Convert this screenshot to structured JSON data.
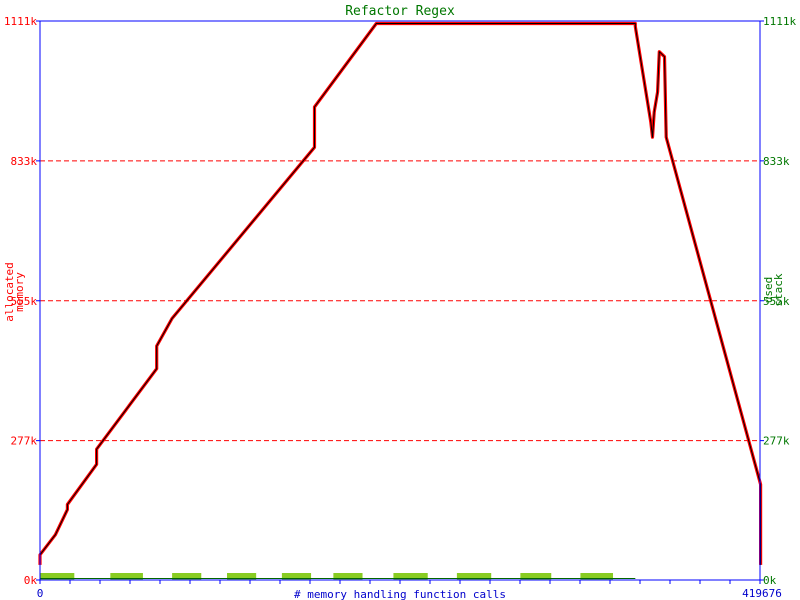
{
  "colors": {
    "axis": "#0000ff",
    "allocated": "#ff0000",
    "allocated_label": "#ff0000",
    "stack_label": "#007700",
    "stack_bar": "#88cc22",
    "grid": "#ff0000",
    "curve_black": "#000000",
    "xlabel": "#0000cc"
  },
  "chart_data": {
    "type": "line",
    "title": "Refactor Regex",
    "xlabel": "# memory handling function calls",
    "ylabel_left": [
      "allocated",
      "memory"
    ],
    "ylabel_right": [
      "used",
      "stack"
    ],
    "xlim": [
      0,
      419676
    ],
    "ylim": [
      0,
      1111
    ],
    "y_units": "k",
    "x_ticks": [
      "0",
      "419676"
    ],
    "y_ticks_left": [
      "0k",
      "277k",
      "555k",
      "833k",
      "1111k"
    ],
    "y_ticks_right": [
      "0k",
      "277k",
      "555k",
      "833k",
      "1111k"
    ],
    "y_tick_values": [
      0,
      277,
      555,
      833,
      1111
    ],
    "grid_values": [
      277,
      555,
      833
    ],
    "grid": "dashed horizontal",
    "series": [
      {
        "kind": "allocated",
        "points": [
          [
            0,
            30
          ],
          [
            0,
            50
          ],
          [
            9000,
            90
          ],
          [
            16000,
            140
          ],
          [
            16000,
            150
          ],
          [
            33000,
            230
          ],
          [
            33000,
            260
          ],
          [
            68000,
            420
          ],
          [
            68000,
            465
          ],
          [
            77000,
            520
          ],
          [
            160000,
            860
          ],
          [
            160000,
            940
          ],
          [
            196000,
            1106
          ],
          [
            347000,
            1106
          ],
          [
            347000,
            1100
          ],
          [
            356000,
            910
          ],
          [
            357000,
            880
          ],
          [
            358000,
            930
          ],
          [
            360000,
            970
          ],
          [
            361000,
            1050
          ],
          [
            364000,
            1040
          ],
          [
            365000,
            880
          ],
          [
            420000,
            190
          ],
          [
            420000,
            30
          ]
        ]
      }
    ],
    "stack_bar_segments": [
      [
        0,
        20000
      ],
      [
        41000,
        60000
      ],
      [
        77000,
        94000
      ],
      [
        109000,
        126000
      ],
      [
        141000,
        158000
      ],
      [
        171000,
        188000
      ],
      [
        206000,
        226000
      ],
      [
        243000,
        263000
      ],
      [
        280000,
        298000
      ],
      [
        315000,
        334000
      ]
    ],
    "stack_line_end": 347000
  }
}
